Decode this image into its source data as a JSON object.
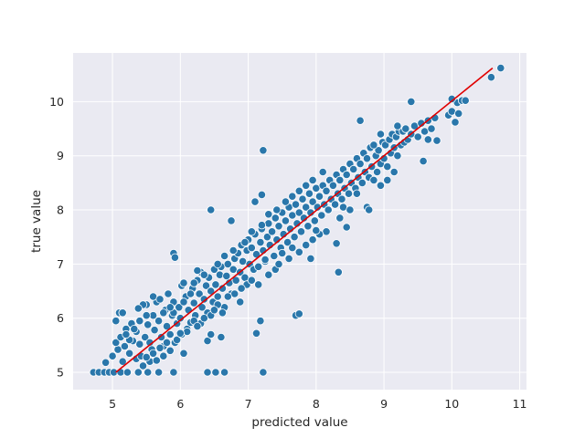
{
  "chart_data": {
    "type": "scatter",
    "title": "",
    "xlabel": "predicted value",
    "ylabel": "true value",
    "xlim": [
      4.42,
      11.1
    ],
    "ylim": [
      4.68,
      10.9
    ],
    "xticks": [
      5,
      6,
      7,
      8,
      9,
      10,
      11
    ],
    "yticks": [
      5,
      6,
      7,
      8,
      9,
      10
    ],
    "grid": true,
    "legend": "none",
    "colors": {
      "background": "#eaeaf2",
      "grid": "#ffffff",
      "points": "#2a77ab",
      "point_edge": "#ffffff",
      "fit_line": "#e00000"
    },
    "fit_line": {
      "x": [
        5.05,
        10.6
      ],
      "y": [
        5.0,
        10.62
      ]
    },
    "points": [
      [
        4.72,
        5.0
      ],
      [
        4.8,
        5.0
      ],
      [
        4.88,
        5.0
      ],
      [
        4.95,
        5.0
      ],
      [
        5.02,
        5.0
      ],
      [
        5.12,
        5.0
      ],
      [
        5.22,
        5.0
      ],
      [
        5.38,
        5.0
      ],
      [
        5.52,
        5.0
      ],
      [
        5.68,
        5.0
      ],
      [
        5.9,
        5.0
      ],
      [
        6.4,
        5.0
      ],
      [
        6.52,
        5.0
      ],
      [
        6.65,
        5.0
      ],
      [
        7.22,
        5.0
      ],
      [
        4.9,
        5.18
      ],
      [
        5.0,
        5.3
      ],
      [
        5.08,
        5.42
      ],
      [
        5.05,
        5.55
      ],
      [
        5.12,
        5.65
      ],
      [
        5.18,
        5.48
      ],
      [
        5.25,
        5.35
      ],
      [
        5.3,
        5.58
      ],
      [
        5.15,
        5.2
      ],
      [
        5.35,
        5.25
      ],
      [
        5.05,
        5.95
      ],
      [
        5.1,
        6.1
      ],
      [
        5.15,
        6.1
      ],
      [
        5.2,
        5.8
      ],
      [
        5.25,
        5.6
      ],
      [
        5.28,
        5.9
      ],
      [
        5.35,
        5.75
      ],
      [
        5.4,
        5.52
      ],
      [
        5.42,
        5.3
      ],
      [
        5.48,
        5.65
      ],
      [
        5.5,
        6.25
      ],
      [
        5.52,
        5.88
      ],
      [
        5.55,
        5.55
      ],
      [
        5.58,
        5.42
      ],
      [
        5.6,
        6.05
      ],
      [
        5.62,
        5.78
      ],
      [
        5.65,
        6.3
      ],
      [
        5.68,
        5.95
      ],
      [
        5.72,
        5.65
      ],
      [
        5.75,
        5.48
      ],
      [
        5.78,
        6.15
      ],
      [
        5.8,
        5.85
      ],
      [
        5.82,
        6.45
      ],
      [
        5.85,
        5.7
      ],
      [
        5.88,
        6.05
      ],
      [
        5.9,
        6.3
      ],
      [
        5.92,
        5.55
      ],
      [
        5.95,
        5.9
      ],
      [
        5.98,
        6.2
      ],
      [
        6.0,
        6.0
      ],
      [
        5.55,
        5.2
      ],
      [
        5.65,
        5.22
      ],
      [
        5.75,
        5.3
      ],
      [
        5.85,
        5.4
      ],
      [
        5.45,
        5.12
      ],
      [
        5.95,
        5.6
      ],
      [
        6.02,
        5.7
      ],
      [
        6.05,
        5.35
      ],
      [
        6.1,
        5.8
      ],
      [
        6.15,
        5.92
      ],
      [
        6.02,
        6.6
      ],
      [
        6.08,
        6.4
      ],
      [
        6.12,
        6.15
      ],
      [
        6.18,
        6.55
      ],
      [
        6.2,
        6.28
      ],
      [
        6.22,
        6.05
      ],
      [
        6.25,
        6.7
      ],
      [
        6.28,
        6.45
      ],
      [
        6.3,
        6.85
      ],
      [
        6.32,
        6.2
      ],
      [
        6.35,
        6.35
      ],
      [
        6.38,
        6.6
      ],
      [
        6.4,
        6.1
      ],
      [
        6.42,
        6.75
      ],
      [
        6.45,
        6.5
      ],
      [
        6.48,
        6.3
      ],
      [
        6.5,
        6.9
      ],
      [
        6.52,
        6.62
      ],
      [
        6.55,
        6.4
      ],
      [
        6.58,
        6.8
      ],
      [
        6.6,
        6.95
      ],
      [
        6.62,
        6.55
      ],
      [
        6.65,
        6.2
      ],
      [
        6.68,
        6.78
      ],
      [
        6.7,
        7.0
      ],
      [
        6.72,
        6.65
      ],
      [
        6.75,
        6.45
      ],
      [
        6.78,
        6.9
      ],
      [
        6.8,
        7.1
      ],
      [
        6.82,
        6.7
      ],
      [
        5.9,
        7.2
      ],
      [
        5.92,
        7.12
      ],
      [
        6.05,
        6.65
      ],
      [
        6.25,
        6.88
      ],
      [
        6.45,
        8.0
      ],
      [
        6.75,
        7.8
      ],
      [
        6.4,
        5.58
      ],
      [
        6.45,
        5.7
      ],
      [
        6.6,
        5.65
      ],
      [
        6.3,
        5.9
      ],
      [
        7.12,
        5.72
      ],
      [
        7.18,
        5.95
      ],
      [
        7.22,
        9.1
      ],
      [
        7.2,
        8.28
      ],
      [
        7.1,
        8.15
      ],
      [
        7.7,
        6.05
      ],
      [
        7.75,
        6.08
      ],
      [
        8.33,
        6.85
      ],
      [
        8.3,
        7.38
      ],
      [
        7.92,
        7.1
      ],
      [
        6.85,
        7.2
      ],
      [
        6.88,
        6.85
      ],
      [
        6.9,
        7.35
      ],
      [
        6.92,
        7.05
      ],
      [
        6.95,
        6.75
      ],
      [
        6.98,
        7.25
      ],
      [
        7.0,
        7.45
      ],
      [
        7.02,
        7.0
      ],
      [
        7.05,
        7.3
      ],
      [
        7.08,
        6.9
      ],
      [
        7.1,
        7.55
      ],
      [
        7.12,
        7.18
      ],
      [
        7.15,
        6.95
      ],
      [
        7.18,
        7.4
      ],
      [
        7.2,
        7.65
      ],
      [
        7.22,
        7.25
      ],
      [
        7.25,
        7.05
      ],
      [
        7.28,
        7.5
      ],
      [
        7.3,
        7.75
      ],
      [
        7.32,
        7.35
      ],
      [
        7.35,
        7.6
      ],
      [
        7.38,
        7.15
      ],
      [
        7.4,
        7.85
      ],
      [
        7.42,
        7.45
      ],
      [
        7.45,
        7.7
      ],
      [
        7.48,
        7.3
      ],
      [
        7.5,
        7.95
      ],
      [
        7.52,
        7.55
      ],
      [
        7.55,
        7.8
      ],
      [
        7.58,
        7.4
      ],
      [
        7.6,
        8.05
      ],
      [
        7.62,
        7.65
      ],
      [
        7.65,
        7.9
      ],
      [
        7.68,
        7.5
      ],
      [
        7.7,
        8.1
      ],
      [
        7.72,
        7.75
      ],
      [
        7.75,
        7.95
      ],
      [
        7.78,
        7.6
      ],
      [
        7.8,
        8.2
      ],
      [
        7.82,
        7.85
      ],
      [
        7.85,
        8.05
      ],
      [
        7.88,
        7.7
      ],
      [
        7.9,
        8.3
      ],
      [
        7.92,
        7.95
      ],
      [
        7.95,
        8.15
      ],
      [
        7.98,
        7.8
      ],
      [
        8.0,
        8.4
      ],
      [
        8.02,
        8.05
      ],
      [
        8.05,
        8.25
      ],
      [
        8.08,
        7.9
      ],
      [
        8.1,
        8.45
      ],
      [
        8.12,
        8.1
      ],
      [
        8.15,
        8.35
      ],
      [
        8.18,
        8.0
      ],
      [
        8.2,
        8.55
      ],
      [
        8.22,
        8.2
      ],
      [
        8.25,
        8.45
      ],
      [
        8.28,
        8.1
      ],
      [
        8.3,
        8.65
      ],
      [
        8.32,
        8.3
      ],
      [
        8.35,
        8.55
      ],
      [
        8.38,
        8.2
      ],
      [
        8.4,
        8.75
      ],
      [
        8.42,
        8.4
      ],
      [
        8.45,
        8.65
      ],
      [
        8.48,
        8.3
      ],
      [
        8.5,
        8.85
      ],
      [
        8.52,
        8.5
      ],
      [
        8.55,
        8.75
      ],
      [
        8.58,
        8.4
      ],
      [
        8.6,
        8.95
      ],
      [
        8.62,
        8.6
      ],
      [
        8.65,
        8.85
      ],
      [
        8.68,
        8.5
      ],
      [
        8.7,
        9.05
      ],
      [
        8.72,
        8.7
      ],
      [
        8.75,
        8.95
      ],
      [
        8.78,
        8.6
      ],
      [
        8.8,
        9.15
      ],
      [
        8.82,
        8.8
      ],
      [
        8.4,
        8.05
      ],
      [
        8.5,
        8.0
      ],
      [
        8.6,
        8.3
      ],
      [
        8.75,
        8.05
      ],
      [
        8.78,
        8.0
      ],
      [
        8.35,
        7.85
      ],
      [
        8.45,
        7.68
      ],
      [
        8.15,
        7.6
      ],
      [
        8.05,
        7.55
      ],
      [
        7.95,
        7.45
      ],
      [
        7.3,
        6.8
      ],
      [
        7.25,
        7.08
      ],
      [
        7.4,
        6.9
      ],
      [
        7.5,
        7.2
      ],
      [
        7.6,
        7.1
      ],
      [
        7.75,
        7.22
      ],
      [
        7.85,
        7.35
      ],
      [
        8.0,
        7.62
      ],
      [
        7.45,
        7.0
      ],
      [
        7.65,
        7.3
      ],
      [
        6.98,
        6.62
      ],
      [
        6.8,
        6.45
      ],
      [
        6.62,
        6.1
      ],
      [
        6.55,
        6.25
      ],
      [
        6.7,
        6.4
      ],
      [
        6.9,
        6.55
      ],
      [
        7.05,
        6.7
      ],
      [
        7.15,
        6.62
      ],
      [
        6.88,
        6.3
      ],
      [
        6.45,
        6.05
      ],
      [
        6.2,
        5.95
      ],
      [
        6.1,
        5.75
      ],
      [
        6.35,
        6.0
      ],
      [
        6.25,
        5.85
      ],
      [
        6.5,
        6.15
      ],
      [
        5.8,
        5.55
      ],
      [
        5.7,
        5.45
      ],
      [
        6.0,
        5.72
      ],
      [
        5.6,
        5.35
      ],
      [
        5.5,
        5.28
      ],
      [
        5.9,
        6.1
      ],
      [
        6.15,
        6.45
      ],
      [
        6.05,
        6.3
      ],
      [
        5.85,
        6.2
      ],
      [
        6.2,
        6.65
      ],
      [
        6.35,
        6.8
      ],
      [
        6.55,
        7.0
      ],
      [
        6.65,
        7.15
      ],
      [
        6.78,
        7.25
      ],
      [
        6.95,
        7.4
      ],
      [
        7.05,
        7.6
      ],
      [
        7.2,
        7.72
      ],
      [
        7.3,
        7.92
      ],
      [
        7.42,
        8.0
      ],
      [
        7.55,
        8.15
      ],
      [
        7.65,
        8.25
      ],
      [
        7.75,
        8.35
      ],
      [
        7.85,
        8.45
      ],
      [
        7.95,
        8.55
      ],
      [
        8.1,
        8.7
      ],
      [
        8.88,
        9.0
      ],
      [
        8.9,
        8.7
      ],
      [
        8.92,
        9.1
      ],
      [
        8.95,
        8.85
      ],
      [
        8.98,
        9.25
      ],
      [
        9.0,
        8.95
      ],
      [
        9.02,
        9.2
      ],
      [
        9.05,
        8.8
      ],
      [
        9.08,
        9.3
      ],
      [
        9.1,
        9.05
      ],
      [
        9.12,
        9.4
      ],
      [
        9.15,
        9.15
      ],
      [
        9.18,
        9.35
      ],
      [
        9.2,
        9.0
      ],
      [
        9.22,
        9.45
      ],
      [
        9.25,
        9.2
      ],
      [
        9.28,
        9.45
      ],
      [
        9.3,
        9.25
      ],
      [
        9.32,
        9.5
      ],
      [
        9.35,
        9.3
      ],
      [
        9.4,
        9.4
      ],
      [
        9.45,
        9.55
      ],
      [
        9.5,
        9.35
      ],
      [
        9.55,
        9.6
      ],
      [
        9.6,
        9.45
      ],
      [
        9.65,
        9.65
      ],
      [
        9.7,
        9.5
      ],
      [
        9.75,
        9.7
      ],
      [
        9.78,
        9.28
      ],
      [
        9.65,
        9.3
      ],
      [
        9.4,
        10.0
      ],
      [
        9.58,
        8.9
      ],
      [
        9.05,
        8.55
      ],
      [
        9.15,
        8.7
      ],
      [
        8.95,
        8.45
      ],
      [
        8.85,
        8.55
      ],
      [
        8.65,
        9.65
      ],
      [
        8.85,
        9.2
      ],
      [
        8.95,
        9.4
      ],
      [
        9.2,
        9.55
      ],
      [
        9.95,
        9.75
      ],
      [
        10.0,
        9.82
      ],
      [
        10.05,
        9.62
      ],
      [
        10.08,
        9.98
      ],
      [
        10.1,
        9.78
      ],
      [
        10.15,
        10.02
      ],
      [
        10.0,
        10.05
      ],
      [
        10.2,
        10.02
      ],
      [
        10.58,
        10.45
      ],
      [
        10.72,
        10.62
      ],
      [
        5.15,
        6.1
      ],
      [
        5.4,
        5.95
      ],
      [
        5.45,
        6.25
      ],
      [
        5.32,
        5.8
      ],
      [
        5.6,
        6.4
      ],
      [
        5.7,
        6.35
      ],
      [
        5.75,
        6.1
      ],
      [
        5.5,
        6.05
      ],
      [
        5.38,
        6.18
      ],
      [
        5.2,
        5.7
      ]
    ]
  }
}
